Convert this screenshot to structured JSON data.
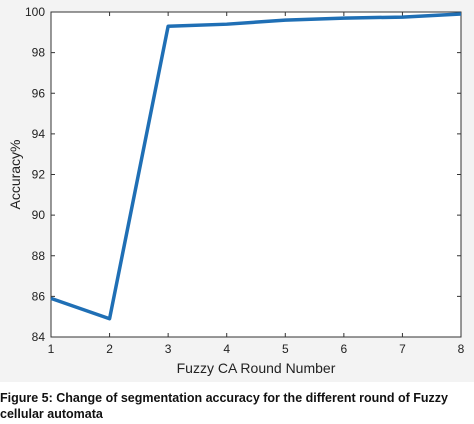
{
  "chart_data": {
    "type": "line",
    "title": "",
    "xlabel": "Fuzzy CA Round Number",
    "ylabel": "Accuracy%",
    "xlim": [
      1,
      8
    ],
    "ylim": [
      84,
      100
    ],
    "xticks": [
      1,
      2,
      3,
      4,
      5,
      6,
      7,
      8
    ],
    "yticks": [
      84,
      86,
      88,
      90,
      92,
      94,
      96,
      98,
      100
    ],
    "grid": false,
    "series": [
      {
        "color": "#1f6fb5",
        "x": [
          1,
          2,
          3,
          4,
          5,
          6,
          7,
          8
        ],
        "y": [
          85.9,
          84.9,
          99.3,
          99.4,
          99.6,
          99.7,
          99.75,
          99.9
        ]
      }
    ]
  },
  "caption": {
    "line1": "Figure 5: Change of segmentation accuracy for the different round of Fuzzy",
    "line2": "cellular automata"
  }
}
